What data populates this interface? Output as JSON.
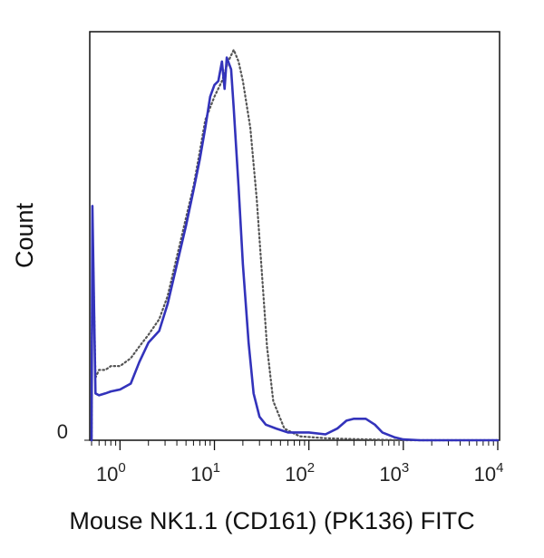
{
  "chart_data": {
    "type": "line",
    "title": "",
    "xlabel": "Mouse NK1.1 (CD161) (PK136) FITC",
    "ylabel": "Count",
    "x_scale": "log",
    "xlim": [
      0.5,
      10000
    ],
    "ylim": [
      0,
      100
    ],
    "grid": false,
    "legend": "none",
    "x_ticks": [
      {
        "base": "10",
        "exp": "0",
        "value": 1
      },
      {
        "base": "10",
        "exp": "1",
        "value": 10
      },
      {
        "base": "10",
        "exp": "2",
        "value": 100
      },
      {
        "base": "10",
        "exp": "3",
        "value": 1000
      },
      {
        "base": "10",
        "exp": "4",
        "value": 10000
      }
    ],
    "y_ticks": [
      {
        "label": "0",
        "value": 0
      }
    ],
    "series": [
      {
        "style": "solid",
        "color": "#3333bb",
        "points": [
          [
            0.5,
            0
          ],
          [
            0.51,
            60
          ],
          [
            0.55,
            12
          ],
          [
            0.6,
            11.5
          ],
          [
            0.7,
            12
          ],
          [
            0.8,
            12.5
          ],
          [
            1,
            13
          ],
          [
            1.3,
            14.5
          ],
          [
            1.6,
            20
          ],
          [
            2,
            25
          ],
          [
            2.6,
            28
          ],
          [
            3.2,
            35
          ],
          [
            4,
            45
          ],
          [
            5,
            55
          ],
          [
            6,
            64
          ],
          [
            7,
            72
          ],
          [
            8,
            80
          ],
          [
            9,
            88
          ],
          [
            10,
            91
          ],
          [
            11,
            92
          ],
          [
            12,
            97
          ],
          [
            12.8,
            90
          ],
          [
            13.5,
            98
          ],
          [
            15,
            95
          ],
          [
            16,
            85
          ],
          [
            18,
            65
          ],
          [
            20,
            45
          ],
          [
            23,
            25
          ],
          [
            26,
            12
          ],
          [
            30,
            6
          ],
          [
            35,
            4
          ],
          [
            45,
            3
          ],
          [
            60,
            2
          ],
          [
            100,
            2
          ],
          [
            150,
            1.5
          ],
          [
            200,
            3
          ],
          [
            250,
            5
          ],
          [
            300,
            5.5
          ],
          [
            400,
            5.5
          ],
          [
            500,
            4
          ],
          [
            600,
            2
          ],
          [
            800,
            0.8
          ],
          [
            1000,
            0.2
          ],
          [
            1500,
            0
          ],
          [
            10000,
            0
          ]
        ]
      },
      {
        "style": "dotted",
        "color": "#555555",
        "points": [
          [
            0.5,
            0
          ],
          [
            0.51,
            56
          ],
          [
            0.55,
            16
          ],
          [
            0.6,
            18
          ],
          [
            0.7,
            18
          ],
          [
            0.8,
            19
          ],
          [
            1,
            19
          ],
          [
            1.3,
            21
          ],
          [
            1.6,
            24
          ],
          [
            2,
            27
          ],
          [
            2.6,
            31
          ],
          [
            3.2,
            37
          ],
          [
            4,
            47
          ],
          [
            5,
            57
          ],
          [
            6,
            65
          ],
          [
            7,
            74
          ],
          [
            8,
            82
          ],
          [
            10,
            88
          ],
          [
            12,
            92
          ],
          [
            14,
            97
          ],
          [
            16,
            100
          ],
          [
            18,
            97
          ],
          [
            20,
            92
          ],
          [
            24,
            80
          ],
          [
            28,
            62
          ],
          [
            32,
            42
          ],
          [
            36,
            24
          ],
          [
            42,
            10
          ],
          [
            55,
            3
          ],
          [
            80,
            1
          ],
          [
            150,
            0.5
          ],
          [
            300,
            0.3
          ],
          [
            1000,
            0
          ],
          [
            10000,
            0
          ]
        ]
      }
    ]
  }
}
